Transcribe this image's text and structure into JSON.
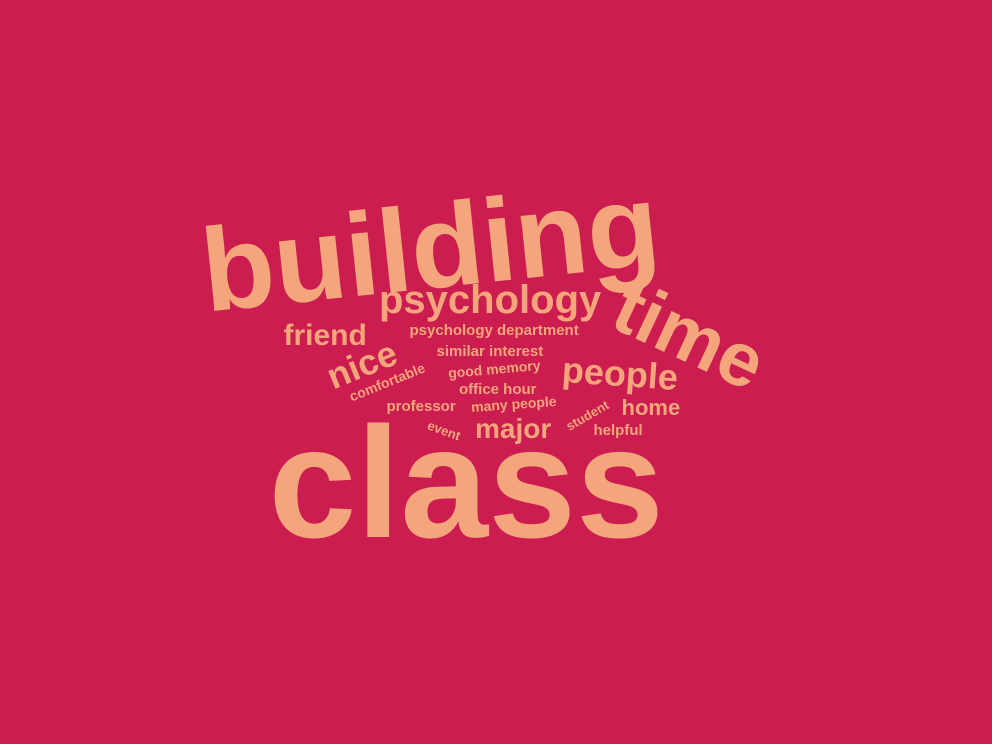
{
  "colors": {
    "background": "#cb1d4f",
    "text": "#f5a57c"
  },
  "words": [
    {
      "id": "building",
      "text": "building"
    },
    {
      "id": "class",
      "text": "class"
    },
    {
      "id": "time",
      "text": "time"
    },
    {
      "id": "psychology",
      "text": "psychology"
    },
    {
      "id": "people",
      "text": "people"
    },
    {
      "id": "nice",
      "text": "nice"
    },
    {
      "id": "friend",
      "text": "friend"
    },
    {
      "id": "major",
      "text": "major"
    },
    {
      "id": "home",
      "text": "home"
    },
    {
      "id": "psychology-department",
      "text": "psychology department"
    },
    {
      "id": "similar-interest",
      "text": "similar interest"
    },
    {
      "id": "good-memory",
      "text": "good memory"
    },
    {
      "id": "office-hour",
      "text": "office hour"
    },
    {
      "id": "comfortable",
      "text": "comfortable"
    },
    {
      "id": "professor",
      "text": "professor"
    },
    {
      "id": "many-people",
      "text": "many people"
    },
    {
      "id": "student",
      "text": "student"
    },
    {
      "id": "event",
      "text": "event"
    },
    {
      "id": "helpful",
      "text": "helpful"
    }
  ]
}
